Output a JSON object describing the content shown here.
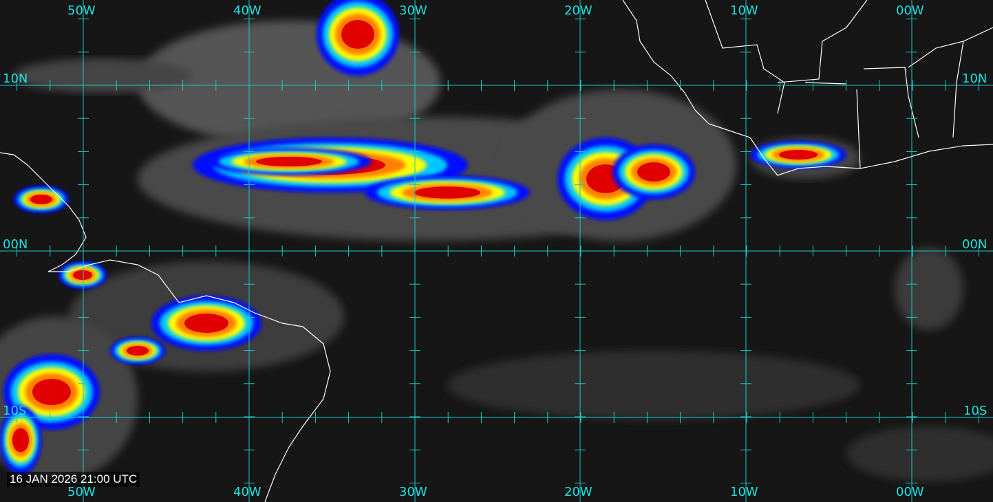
{
  "timestamp": "16 JAN 2026 21:00 UTC",
  "longitude_labels": [
    "50W",
    "40W",
    "30W",
    "20W",
    "10W",
    "00W"
  ],
  "latitude_labels": [
    "10N",
    "00N",
    "10S"
  ],
  "colors": {
    "grid": "#19c8c8",
    "label": "#1fe0e0",
    "coastline": "#ffffff",
    "background": "#161616",
    "enhancement": [
      "#0010ff",
      "#00c8ff",
      "#ffff00",
      "#ff8000",
      "#e00000",
      "#a00000"
    ]
  }
}
